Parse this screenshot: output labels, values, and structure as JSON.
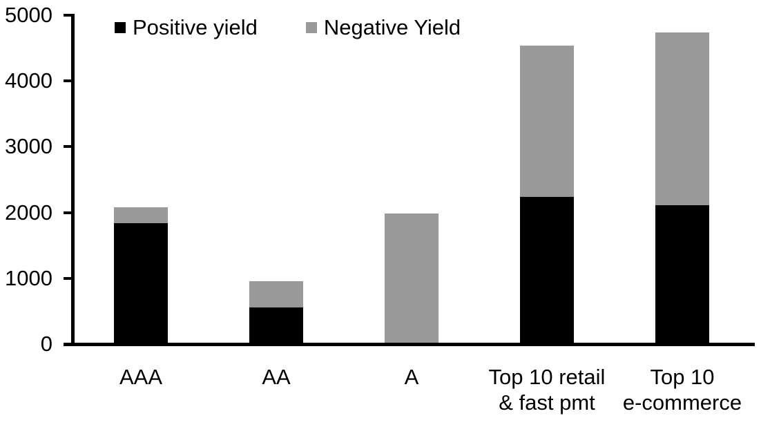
{
  "chart_data": {
    "type": "bar",
    "stacked": true,
    "title": "",
    "xlabel": "",
    "ylabel": "",
    "categories": [
      "AAA",
      "AA",
      "A",
      "Top 10 retail\n& fast pmt",
      "Top 10\ne-commerce"
    ],
    "series": [
      {
        "name": "Positive yield",
        "color": "#000000",
        "values": [
          1860,
          580,
          40,
          2260,
          2130
        ]
      },
      {
        "name": "Negative Yield",
        "color": "#999999",
        "values": [
          240,
          400,
          1970,
          2300,
          2630
        ]
      }
    ],
    "totals": [
      2100,
      980,
      2010,
      4560,
      4760
    ],
    "ylim": [
      0,
      5000
    ],
    "yticks": [
      "0",
      "1000",
      "2000",
      "3000",
      "4000",
      "5000"
    ],
    "legend_position": "top",
    "grid": false,
    "axis_color": "#000000",
    "background_color": "#ffffff"
  }
}
